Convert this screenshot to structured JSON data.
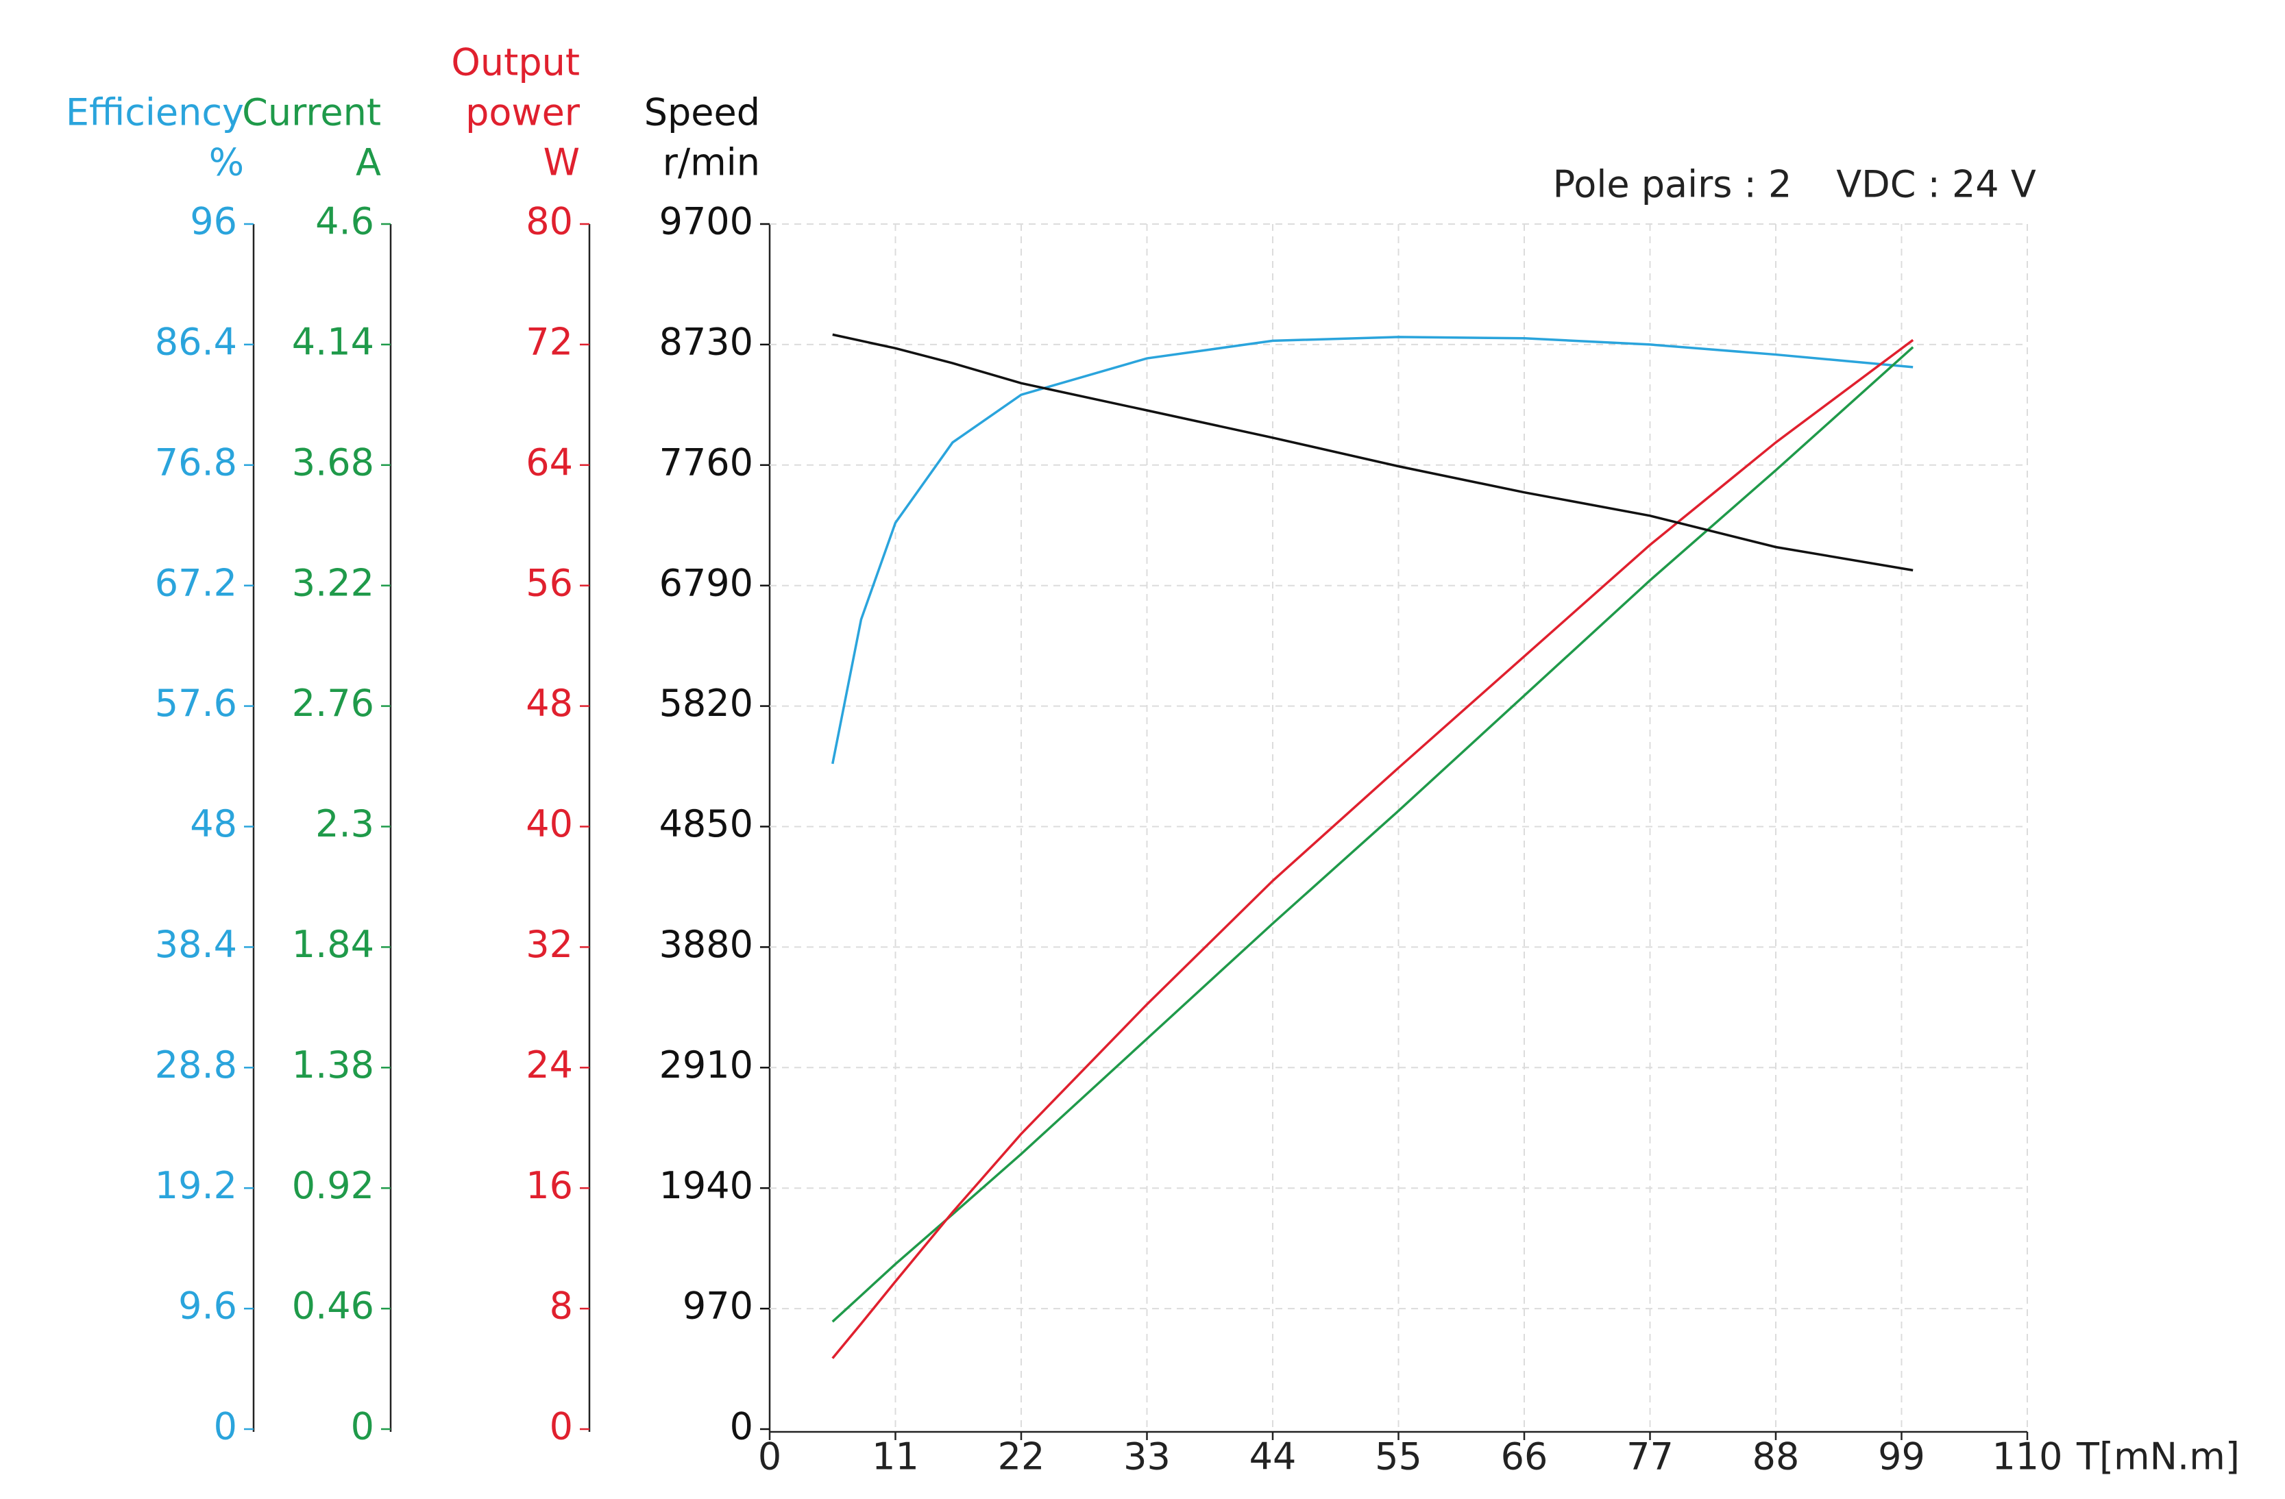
{
  "chart_data": {
    "type": "line",
    "annotations": [
      "Pole pairs : 2",
      "VDC : 24 V"
    ],
    "x_label": "T[mN.m]",
    "x": [
      5.5,
      8,
      11,
      16,
      22,
      33,
      44,
      55,
      66,
      77,
      88,
      100
    ],
    "xlim": [
      0,
      110
    ],
    "xticks": [
      0,
      11,
      22,
      33,
      44,
      55,
      66,
      77,
      88,
      99,
      110
    ],
    "grid": true,
    "y_axes": [
      {
        "label_lines": [
          "Efficiency"
        ],
        "unit": "%",
        "color": "#2aa4dc",
        "ylim": [
          0,
          96
        ],
        "yticks": [
          0,
          9.6,
          19.2,
          28.8,
          38.4,
          48,
          57.6,
          67.2,
          76.8,
          86.4,
          96
        ]
      },
      {
        "label_lines": [
          "Current"
        ],
        "unit": "A",
        "color": "#1f9a4a",
        "ylim": [
          0,
          4.6
        ],
        "yticks": [
          0,
          0.46,
          0.92,
          1.38,
          1.84,
          2.3,
          2.76,
          3.22,
          3.68,
          4.14,
          4.6
        ]
      },
      {
        "label_lines": [
          "Output",
          "power"
        ],
        "unit": "W",
        "color": "#e0202e",
        "ylim": [
          0,
          80
        ],
        "yticks": [
          0,
          8,
          16,
          24,
          32,
          40,
          48,
          56,
          64,
          72,
          80
        ]
      },
      {
        "label_lines": [
          "Speed"
        ],
        "unit": "r/min",
        "color": "#111111",
        "ylim": [
          0,
          9700
        ],
        "yticks": [
          0,
          970,
          1940,
          2910,
          3880,
          4850,
          5820,
          6790,
          7760,
          8730,
          9700
        ]
      }
    ],
    "series": [
      {
        "axis": 0,
        "color": "#2aa4dc",
        "values": [
          53,
          64.5,
          72.2,
          78.6,
          82.4,
          85.3,
          86.7,
          87,
          86.9,
          86.4,
          85.6,
          84.6
        ]
      },
      {
        "axis": 1,
        "color": "#1f9a4a",
        "values": [
          0.41,
          0.51,
          0.63,
          0.82,
          1.05,
          1.49,
          1.93,
          2.36,
          2.8,
          3.24,
          3.66,
          4.13
        ]
      },
      {
        "axis": 2,
        "color": "#e0202e",
        "values": [
          4.7,
          7.0,
          9.8,
          14.4,
          19.6,
          28.2,
          36.4,
          43.9,
          51.3,
          58.7,
          65.5,
          72.3
        ]
      },
      {
        "axis": 3,
        "color": "#111111",
        "values": [
          8810,
          8760,
          8700,
          8580,
          8419,
          8200,
          7980,
          7750,
          7540,
          7352,
          7100,
          6913
        ]
      }
    ]
  }
}
